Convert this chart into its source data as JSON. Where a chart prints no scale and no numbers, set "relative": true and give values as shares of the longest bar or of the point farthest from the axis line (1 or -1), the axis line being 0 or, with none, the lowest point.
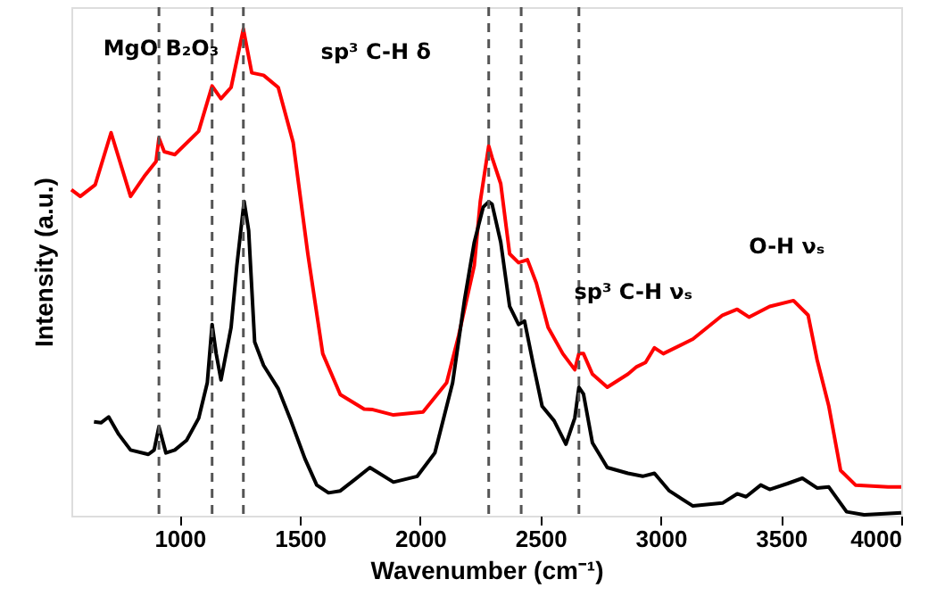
{
  "chart_data": {
    "type": "line",
    "relative": true,
    "xlabel": "Wavenumber (cm⁻¹)",
    "ylabel": "Intensity (a.u.)",
    "xlim": [
      550,
      4000
    ],
    "xticks": [
      1000,
      1500,
      2000,
      2500,
      3000,
      3500,
      4000
    ],
    "grid": false,
    "legend": false,
    "marker": "none",
    "line_style": "solid",
    "series": [
      {
        "color": "#ff0000",
        "x": [
          550,
          587,
          649,
          715,
          796,
          857,
          902,
          914,
          936,
          980,
          1079,
          1135,
          1172,
          1214,
          1265,
          1300,
          1349,
          1410,
          1472,
          1533,
          1595,
          1668,
          1767,
          1803,
          1889,
          2012,
          2110,
          2160,
          2225,
          2250,
          2285,
          2299,
          2335,
          2372,
          2409,
          2446,
          2483,
          2532,
          2593,
          2643,
          2660,
          2679,
          2716,
          2778,
          2864,
          2900,
          2937,
          2974,
          3011,
          3134,
          3257,
          3318,
          3367,
          3453,
          3552,
          3613,
          3650,
          3699,
          3748,
          3810,
          3945,
          4000
        ],
        "values": [
          0.67,
          0.656,
          0.68,
          0.787,
          0.656,
          0.7,
          0.728,
          0.776,
          0.748,
          0.742,
          0.79,
          0.883,
          0.857,
          0.88,
          1.0,
          0.91,
          0.905,
          0.88,
          0.767,
          0.538,
          0.333,
          0.249,
          0.219,
          0.218,
          0.207,
          0.213,
          0.273,
          0.37,
          0.514,
          0.646,
          0.76,
          0.736,
          0.682,
          0.538,
          0.52,
          0.526,
          0.478,
          0.387,
          0.333,
          0.3,
          0.333,
          0.333,
          0.291,
          0.264,
          0.291,
          0.306,
          0.315,
          0.345,
          0.333,
          0.363,
          0.412,
          0.424,
          0.408,
          0.43,
          0.442,
          0.412,
          0.321,
          0.225,
          0.093,
          0.063,
          0.059,
          0.059
        ]
      },
      {
        "color": "#000000",
        "x": [
          644,
          673,
          705,
          747,
          796,
          870,
          894,
          914,
          943,
          980,
          1029,
          1079,
          1115,
          1135,
          1152,
          1172,
          1214,
          1238,
          1268,
          1287,
          1312,
          1349,
          1410,
          1459,
          1521,
          1570,
          1619,
          1668,
          1730,
          1791,
          1889,
          1988,
          2061,
          2135,
          2184,
          2225,
          2262,
          2285,
          2299,
          2335,
          2372,
          2409,
          2434,
          2471,
          2507,
          2557,
          2606,
          2643,
          2660,
          2679,
          2716,
          2778,
          2864,
          2925,
          2974,
          3036,
          3134,
          3257,
          3318,
          3355,
          3416,
          3453,
          3527,
          3589,
          3650,
          3699,
          3773,
          3846,
          4000
        ],
        "values": [
          0.193,
          0.191,
          0.203,
          0.167,
          0.135,
          0.126,
          0.135,
          0.183,
          0.129,
          0.135,
          0.155,
          0.2,
          0.273,
          0.393,
          0.333,
          0.279,
          0.387,
          0.514,
          0.646,
          0.586,
          0.357,
          0.309,
          0.261,
          0.2,
          0.117,
          0.063,
          0.047,
          0.051,
          0.075,
          0.099,
          0.069,
          0.081,
          0.129,
          0.273,
          0.442,
          0.562,
          0.634,
          0.645,
          0.64,
          0.562,
          0.43,
          0.393,
          0.4,
          0.309,
          0.225,
          0.195,
          0.147,
          0.201,
          0.264,
          0.25,
          0.15,
          0.099,
          0.087,
          0.081,
          0.087,
          0.051,
          0.02,
          0.026,
          0.045,
          0.039,
          0.063,
          0.054,
          0.066,
          0.077,
          0.057,
          0.059,
          0.008,
          0.002,
          0.006
        ]
      }
    ],
    "ref_lines": [
      {
        "axis": "x",
        "value": 914,
        "color": "#555555",
        "line_style": "dashed"
      },
      {
        "axis": "x",
        "value": 1135,
        "color": "#555555",
        "line_style": "dashed"
      },
      {
        "axis": "x",
        "value": 1265,
        "color": "#555555",
        "line_style": "dashed"
      },
      {
        "axis": "x",
        "value": 2285,
        "color": "#555555",
        "line_style": "dashed"
      },
      {
        "axis": "x",
        "value": 2420,
        "color": "#555555",
        "line_style": "dashed"
      },
      {
        "axis": "x",
        "value": 2660,
        "color": "#555555",
        "line_style": "dashed"
      }
    ],
    "annotations": [
      "MgO B₂O₃",
      "sp³ C-H δ",
      "sp³ C-H νₛ",
      "O-H νₛ"
    ]
  }
}
